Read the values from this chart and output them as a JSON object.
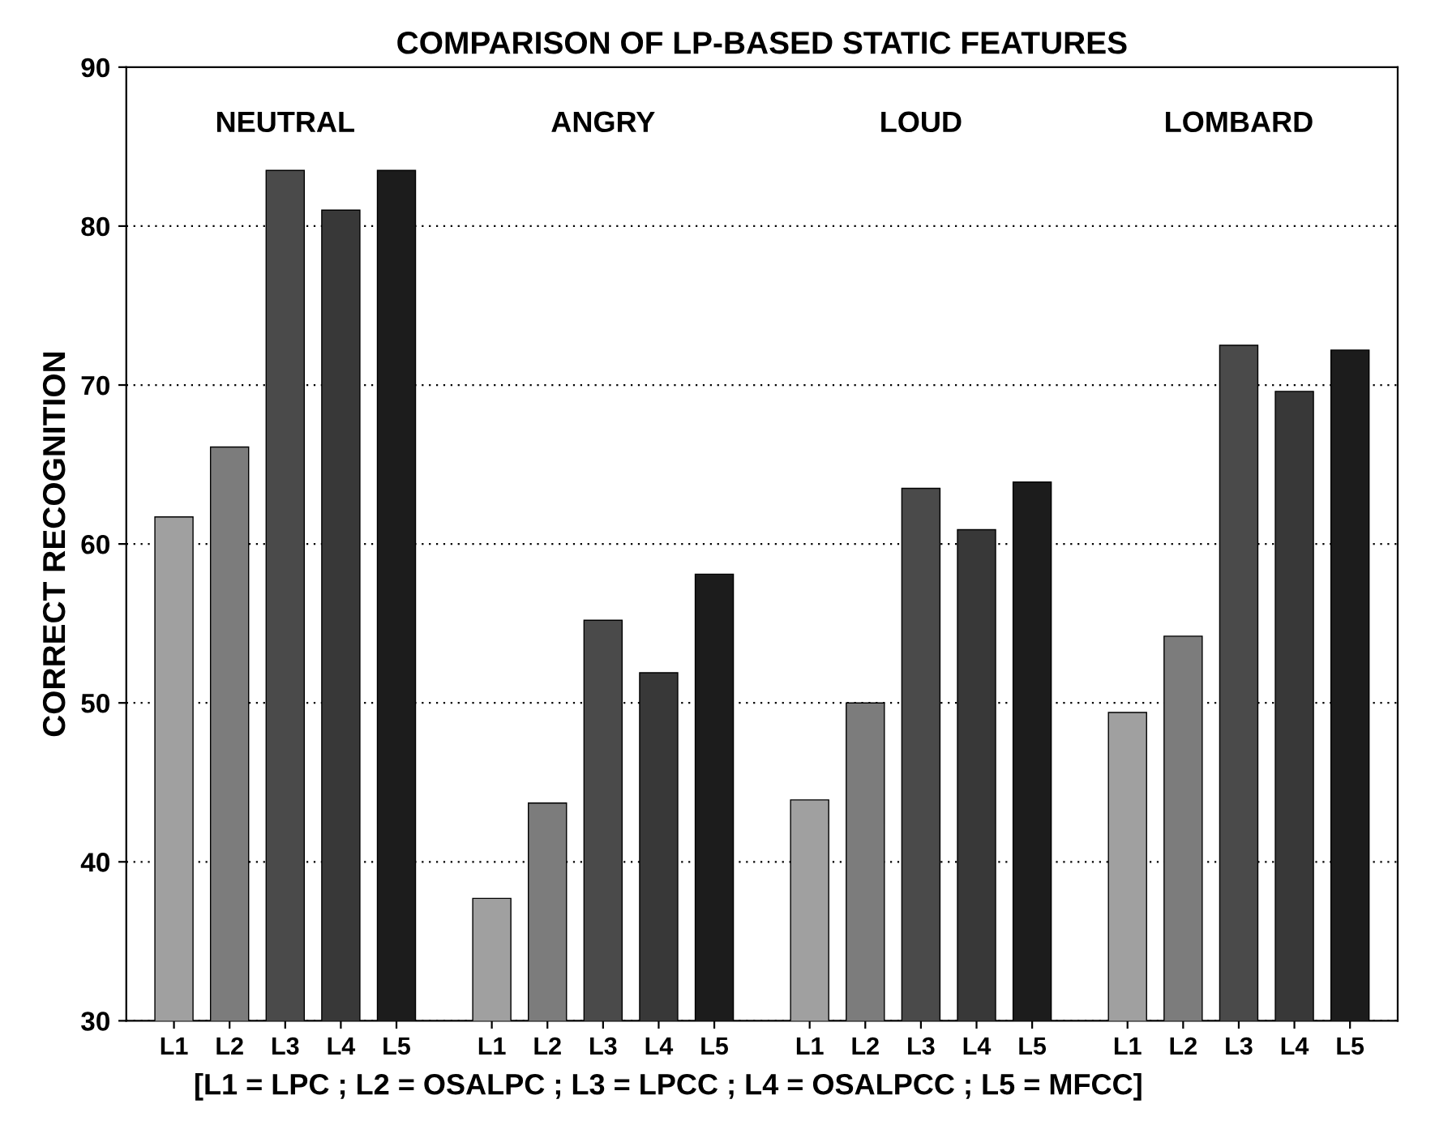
{
  "chart_data": {
    "type": "bar",
    "title": "COMPARISON OF LP-BASED STATIC FEATURES",
    "ylabel": "CORRECT RECOGNITION",
    "categories": [
      "NEUTRAL",
      "ANGRY",
      "LOUD",
      "LOMBARD"
    ],
    "series": [
      {
        "name": "L1",
        "color": "#a0a0a0",
        "values": [
          61.7,
          37.7,
          43.9,
          49.4
        ]
      },
      {
        "name": "L2",
        "color": "#7c7c7c",
        "values": [
          66.1,
          43.7,
          50.0,
          54.2
        ]
      },
      {
        "name": "L3",
        "color": "#4a4a4a",
        "values": [
          83.5,
          55.2,
          63.5,
          72.5
        ]
      },
      {
        "name": "L4",
        "color": "#383838",
        "values": [
          81.0,
          51.9,
          60.9,
          69.6
        ]
      },
      {
        "name": "L5",
        "color": "#1c1c1c",
        "values": [
          83.5,
          58.1,
          63.9,
          72.2
        ]
      }
    ],
    "ylim": [
      30,
      90
    ],
    "yticks": [
      30,
      40,
      50,
      60,
      70,
      80,
      90
    ],
    "grid": "y",
    "legend": "bottom",
    "annotations": [
      "[L1 = LPC ; L2 = OSALPC ; L3 = LPCC ; L4 = OSALPCC ; L5 = MFCC]"
    ]
  }
}
